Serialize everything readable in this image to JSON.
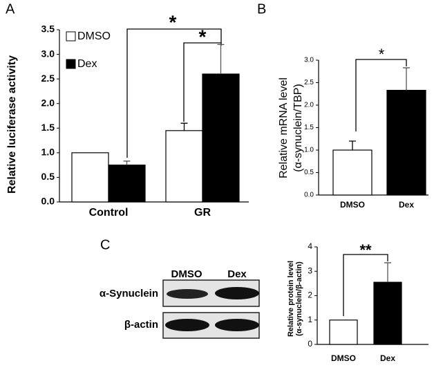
{
  "chart_data": [
    {
      "type": "bar",
      "panel_label": "A",
      "y_label": [
        "Relative luciferase activity"
      ],
      "categories": [
        "Control",
        "GR"
      ],
      "series": [
        {
          "name": "DMSO",
          "color": "#ffffff",
          "values": [
            1.0,
            1.45
          ],
          "errors": [
            null,
            0.15
          ]
        },
        {
          "name": "Dex",
          "color": "#000000",
          "values": [
            0.75,
            2.6
          ],
          "errors": [
            0.08,
            0.6
          ]
        }
      ],
      "ylim": [
        0,
        3.5
      ],
      "yticks": [
        {
          "value": 0,
          "label": "0.0"
        },
        0.5,
        {
          "value": 1,
          "label": "1.0"
        },
        1.5,
        {
          "value": 2,
          "label": "2.0"
        },
        2.5,
        {
          "value": 3,
          "label": "3.0"
        },
        3.5
      ],
      "annotations": [
        "*",
        "*"
      ]
    },
    {
      "type": "bar",
      "panel_label": "B",
      "y_label": [
        "Relative mRNA level",
        "(α-synuclein/TBP)"
      ],
      "categories": [
        "DMSO",
        "Dex"
      ],
      "values": [
        1.0,
        2.33
      ],
      "errors": [
        0.2,
        0.5
      ],
      "colors": [
        "#ffffff",
        "#000000"
      ],
      "ylim": [
        0,
        3
      ],
      "yticks": [
        {
          "value": 0,
          "label": "0.0"
        },
        0.5,
        {
          "value": 1,
          "label": "1.0"
        },
        1.5,
        {
          "value": 2,
          "label": "2.0"
        },
        2.5,
        {
          "value": 3,
          "label": "3.0"
        }
      ],
      "annotations": [
        "*"
      ]
    },
    {
      "type": "bar",
      "panel_label": "C",
      "y_label": [
        "Relative protein level",
        "(α-synuclein/β-actin)"
      ],
      "categories": [
        "DMSO",
        "Dex"
      ],
      "values": [
        1,
        2.55
      ],
      "errors": [
        null,
        0.8
      ],
      "colors": [
        "#ffffff",
        "#000000"
      ],
      "ylim": [
        0,
        4
      ],
      "yticks": [
        0,
        1,
        2,
        3,
        4
      ],
      "annotations": [
        "**"
      ]
    }
  ],
  "blot": {
    "columns": [
      "DMSO",
      "Dex"
    ],
    "rows": [
      "α-Synuclein",
      "β-actin"
    ]
  }
}
